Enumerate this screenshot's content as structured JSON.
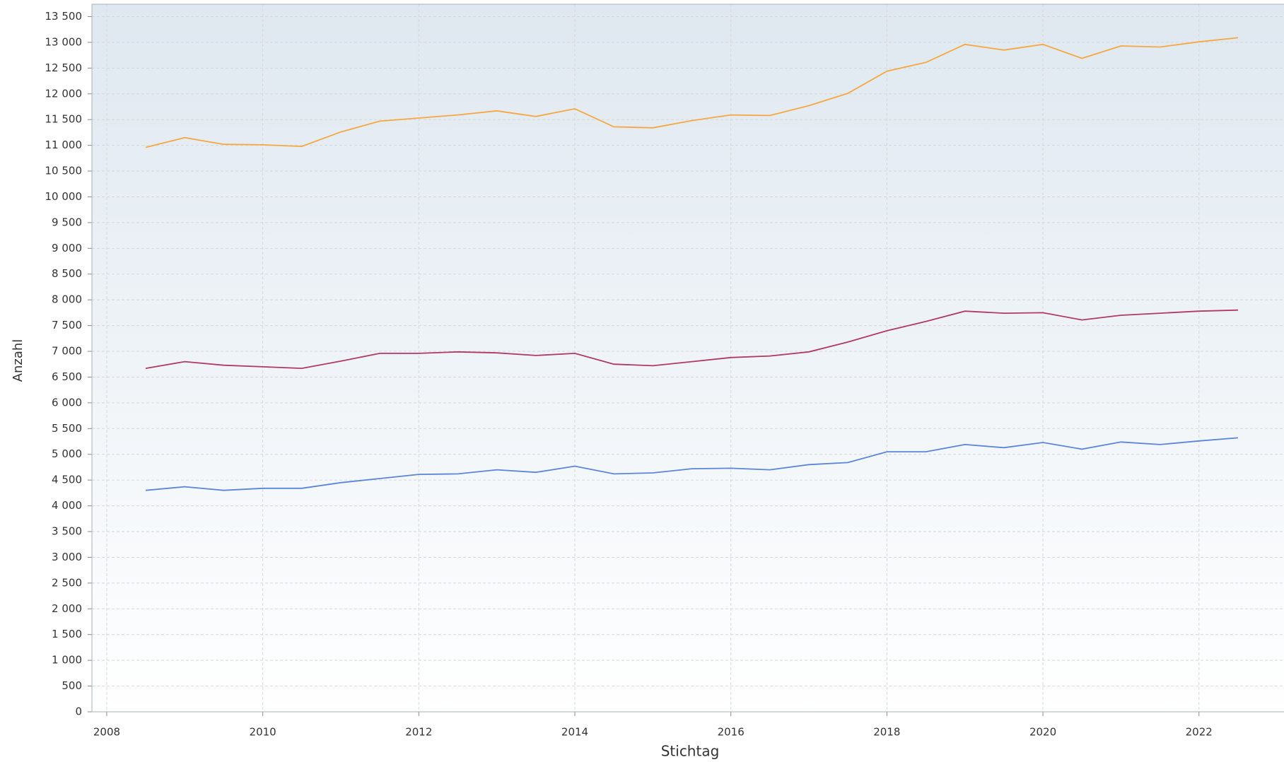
{
  "chart_data": {
    "type": "line",
    "x_label": "Stichtag",
    "y_label": "Anzahl",
    "x": [
      2008.5,
      2009,
      2009.5,
      2010,
      2010.5,
      2011,
      2011.5,
      2012,
      2012.5,
      2013,
      2013.5,
      2014,
      2014.5,
      2015,
      2015.5,
      2016,
      2016.5,
      2017,
      2017.5,
      2018,
      2018.5,
      2019,
      2019.5,
      2020,
      2020.5,
      2021,
      2021.5,
      2022,
      2022.5
    ],
    "series": [
      {
        "color": "#f5a742",
        "values": [
          10960,
          11150,
          11020,
          11010,
          10980,
          11260,
          11470,
          11530,
          11590,
          11670,
          11560,
          11710,
          11360,
          11340,
          11480,
          11590,
          11580,
          11770,
          12010,
          12440,
          12610,
          12960,
          12850,
          12960,
          12690,
          12930,
          12910,
          13010,
          13090
        ]
      },
      {
        "color": "#b03a60",
        "values": [
          6670,
          6800,
          6730,
          6700,
          6670,
          6810,
          6960,
          6960,
          6990,
          6970,
          6920,
          6960,
          6750,
          6720,
          6800,
          6880,
          6910,
          6990,
          7180,
          7400,
          7580,
          7780,
          7740,
          7750,
          7610,
          7700,
          7740,
          7780,
          7800
        ]
      },
      {
        "color": "#5b85d9",
        "values": [
          4300,
          4370,
          4300,
          4340,
          4340,
          4450,
          4530,
          4610,
          4620,
          4700,
          4650,
          4770,
          4620,
          4640,
          4720,
          4730,
          4700,
          4800,
          4840,
          5050,
          5050,
          5190,
          5130,
          5230,
          5100,
          5240,
          5190,
          5260,
          5320
        ]
      }
    ],
    "xlim": [
      2007.81,
      2023.09
    ],
    "xticks": [
      2008,
      2010,
      2012,
      2014,
      2016,
      2018,
      2020,
      2022
    ],
    "ylim": [
      0,
      13740
    ],
    "yticks": [
      0,
      500,
      {
        "value": 1000,
        "label": "1 000"
      },
      {
        "value": 1500,
        "label": "1 500"
      },
      {
        "value": 2000,
        "label": "2 000"
      },
      {
        "value": 2500,
        "label": "2 500"
      },
      {
        "value": 3000,
        "label": "3 000"
      },
      {
        "value": 3500,
        "label": "3 500"
      },
      {
        "value": 4000,
        "label": "4 000"
      },
      {
        "value": 4500,
        "label": "4 500"
      },
      {
        "value": 5000,
        "label": "5 000"
      },
      {
        "value": 5500,
        "label": "5 500"
      },
      {
        "value": 6000,
        "label": "6 000"
      },
      {
        "value": 6500,
        "label": "6 500"
      },
      {
        "value": 7000,
        "label": "7 000"
      },
      {
        "value": 7500,
        "label": "7 500"
      },
      {
        "value": 8000,
        "label": "8 000"
      },
      {
        "value": 8500,
        "label": "8 500"
      },
      {
        "value": 9000,
        "label": "9 000"
      },
      {
        "value": 9500,
        "label": "9 500"
      },
      {
        "value": 10000,
        "label": "10 000"
      },
      {
        "value": 10500,
        "label": "10 500"
      },
      {
        "value": 11000,
        "label": "11 000"
      },
      {
        "value": 11500,
        "label": "11 500"
      },
      {
        "value": 12000,
        "label": "12 000"
      },
      {
        "value": 12500,
        "label": "12 500"
      },
      {
        "value": 13000,
        "label": "13 000"
      },
      {
        "value": 13500,
        "label": "13 500"
      }
    ],
    "grid": true
  }
}
